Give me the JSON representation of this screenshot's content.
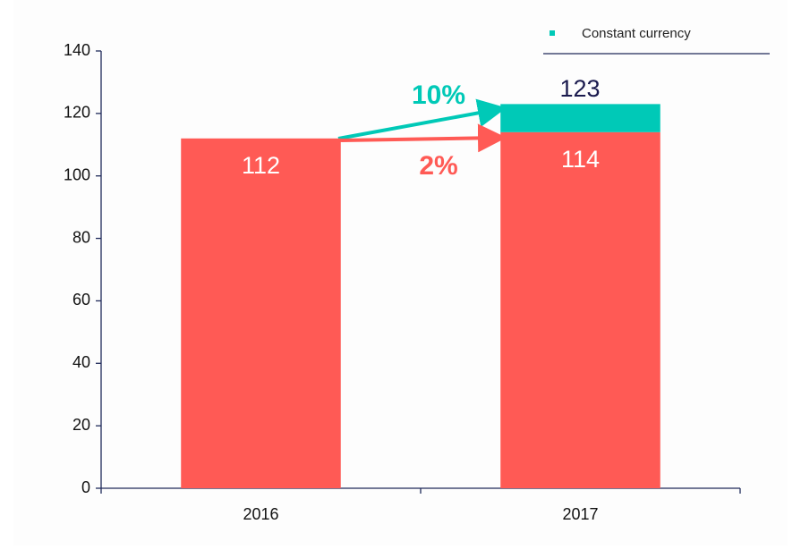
{
  "chart_data": {
    "type": "bar",
    "stacked": true,
    "categories": [
      "2016",
      "2017"
    ],
    "series": [
      {
        "color": "#ff5a55",
        "values": [
          112,
          114
        ]
      },
      {
        "name": "Constant currency",
        "color": "#00c9b7",
        "values": [
          null,
          9
        ]
      }
    ],
    "annotations": [
      {
        "text": "123"
      },
      {
        "text": "10%",
        "color": "#00c9b7"
      },
      {
        "text": "2%",
        "color": "#ff5a55"
      }
    ],
    "ylim": [
      0,
      140
    ],
    "yticks": [
      0,
      20,
      40,
      60,
      80,
      100,
      120,
      140
    ],
    "grid": false,
    "legend": "top-right"
  }
}
